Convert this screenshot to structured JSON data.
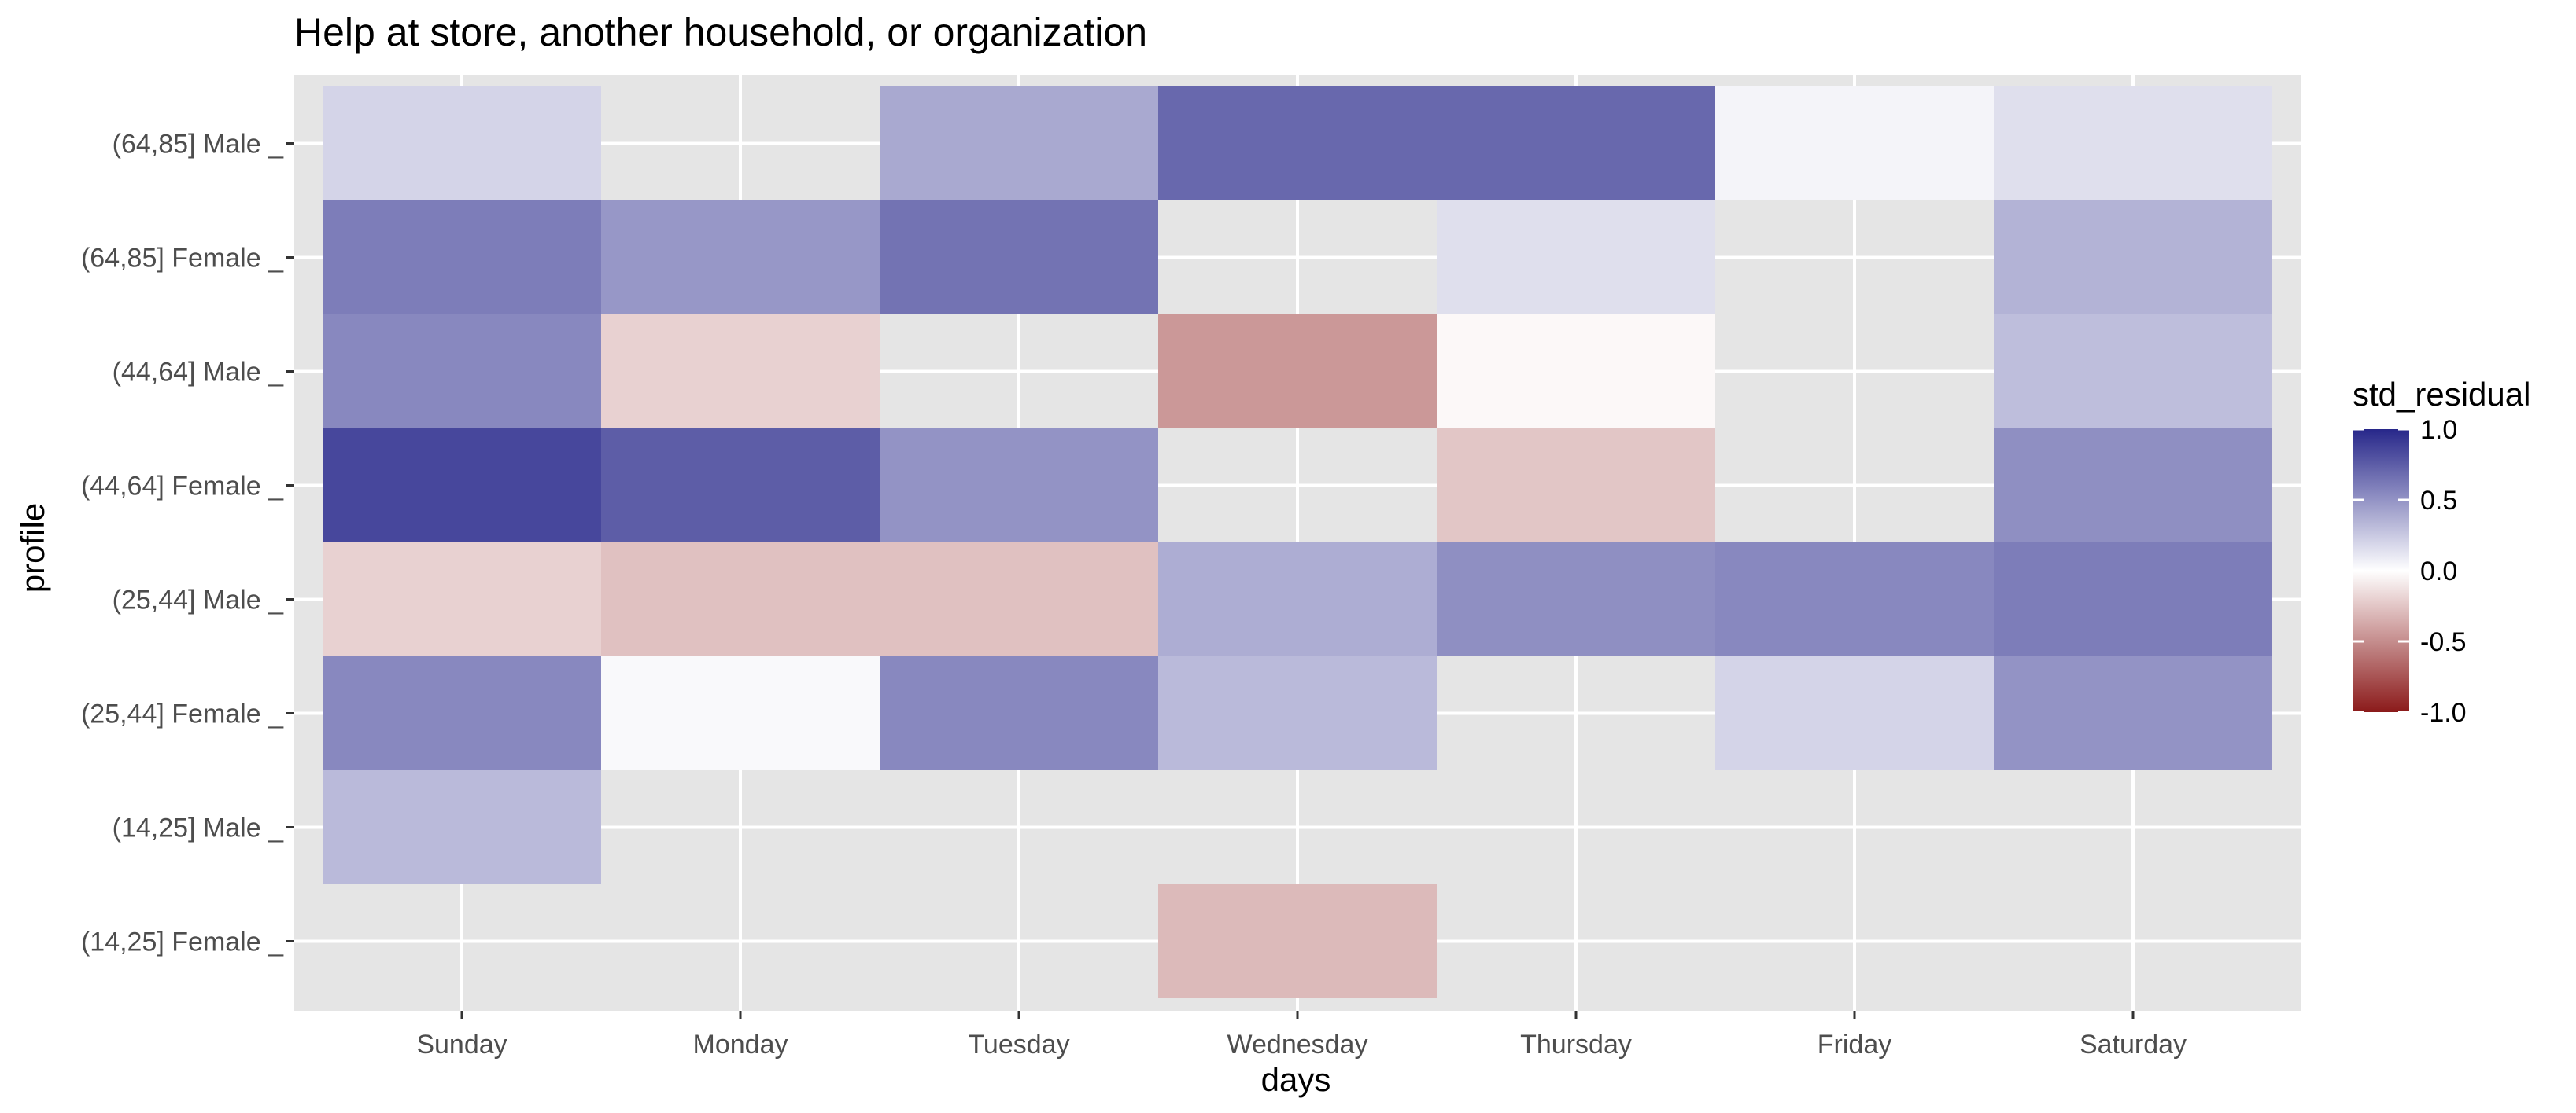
{
  "chart_data": {
    "type": "heatmap",
    "title": "Help at store, another household, or organization",
    "xlabel": "days",
    "ylabel": "profile",
    "x_categories": [
      "Sunday",
      "Monday",
      "Tuesday",
      "Wednesday",
      "Thursday",
      "Friday",
      "Saturday"
    ],
    "y_categories": [
      "(14,25] Female",
      "(14,25] Male",
      "(25,44] Female",
      "(25,44] Male",
      "(44,64] Female",
      "(44,64] Male",
      "(64,85] Female",
      "(64,85] Male"
    ],
    "cells": [
      {
        "x": "Sunday",
        "y": "(64,85] Male",
        "value": 0.2
      },
      {
        "x": "Tuesday",
        "y": "(64,85] Male",
        "value": 0.4
      },
      {
        "x": "Wednesday",
        "y": "(64,85] Male",
        "value": 0.7
      },
      {
        "x": "Thursday",
        "y": "(64,85] Male",
        "value": 0.7
      },
      {
        "x": "Friday",
        "y": "(64,85] Male",
        "value": 0.05
      },
      {
        "x": "Saturday",
        "y": "(64,85] Male",
        "value": 0.15
      },
      {
        "x": "Sunday",
        "y": "(64,85] Female",
        "value": 0.6
      },
      {
        "x": "Monday",
        "y": "(64,85] Female",
        "value": 0.48
      },
      {
        "x": "Tuesday",
        "y": "(64,85] Female",
        "value": 0.65
      },
      {
        "x": "Thursday",
        "y": "(64,85] Female",
        "value": 0.15
      },
      {
        "x": "Saturday",
        "y": "(64,85] Female",
        "value": 0.35
      },
      {
        "x": "Sunday",
        "y": "(44,64] Male",
        "value": 0.55
      },
      {
        "x": "Monday",
        "y": "(44,64] Male",
        "value": -0.2
      },
      {
        "x": "Wednesday",
        "y": "(44,64] Male",
        "value": -0.45
      },
      {
        "x": "Thursday",
        "y": "(44,64] Male",
        "value": -0.03
      },
      {
        "x": "Saturday",
        "y": "(44,64] Male",
        "value": 0.3
      },
      {
        "x": "Sunday",
        "y": "(44,64] Female",
        "value": 0.85
      },
      {
        "x": "Monday",
        "y": "(44,64] Female",
        "value": 0.75
      },
      {
        "x": "Tuesday",
        "y": "(44,64] Female",
        "value": 0.5
      },
      {
        "x": "Thursday",
        "y": "(44,64] Female",
        "value": -0.25
      },
      {
        "x": "Saturday",
        "y": "(44,64] Female",
        "value": 0.52
      },
      {
        "x": "Sunday",
        "y": "(25,44] Male",
        "value": -0.2
      },
      {
        "x": "Monday",
        "y": "(25,44] Male",
        "value": -0.27
      },
      {
        "x": "Tuesday",
        "y": "(25,44] Male",
        "value": -0.27
      },
      {
        "x": "Wednesday",
        "y": "(25,44] Male",
        "value": 0.38
      },
      {
        "x": "Thursday",
        "y": "(25,44] Male",
        "value": 0.52
      },
      {
        "x": "Friday",
        "y": "(25,44] Male",
        "value": 0.55
      },
      {
        "x": "Saturday",
        "y": "(25,44] Male",
        "value": 0.6
      },
      {
        "x": "Sunday",
        "y": "(25,44] Female",
        "value": 0.55
      },
      {
        "x": "Monday",
        "y": "(25,44] Female",
        "value": 0.03
      },
      {
        "x": "Tuesday",
        "y": "(25,44] Female",
        "value": 0.55
      },
      {
        "x": "Wednesday",
        "y": "(25,44] Female",
        "value": 0.32
      },
      {
        "x": "Friday",
        "y": "(25,44] Female",
        "value": 0.2
      },
      {
        "x": "Saturday",
        "y": "(25,44] Female",
        "value": 0.5
      },
      {
        "x": "Sunday",
        "y": "(14,25] Male",
        "value": 0.32
      },
      {
        "x": "Wednesday",
        "y": "(14,25] Female",
        "value": -0.3
      }
    ],
    "legend": {
      "title": "std_residual",
      "placement": "right",
      "breaks": [
        1.0,
        0.5,
        0.0,
        -0.5,
        -1.0
      ],
      "labels": [
        "1.0",
        "0.5",
        "0.0",
        "-0.5",
        "-1.0"
      ],
      "limits": [
        -1.0,
        1.0
      ],
      "low_color": "#8b1a1a",
      "mid_color": "#ffffff",
      "high_color": "#27278a"
    },
    "panel_background": "#e5e5e5",
    "grid_color": "#ffffff",
    "grid": true,
    "tick_suffix": "_"
  }
}
